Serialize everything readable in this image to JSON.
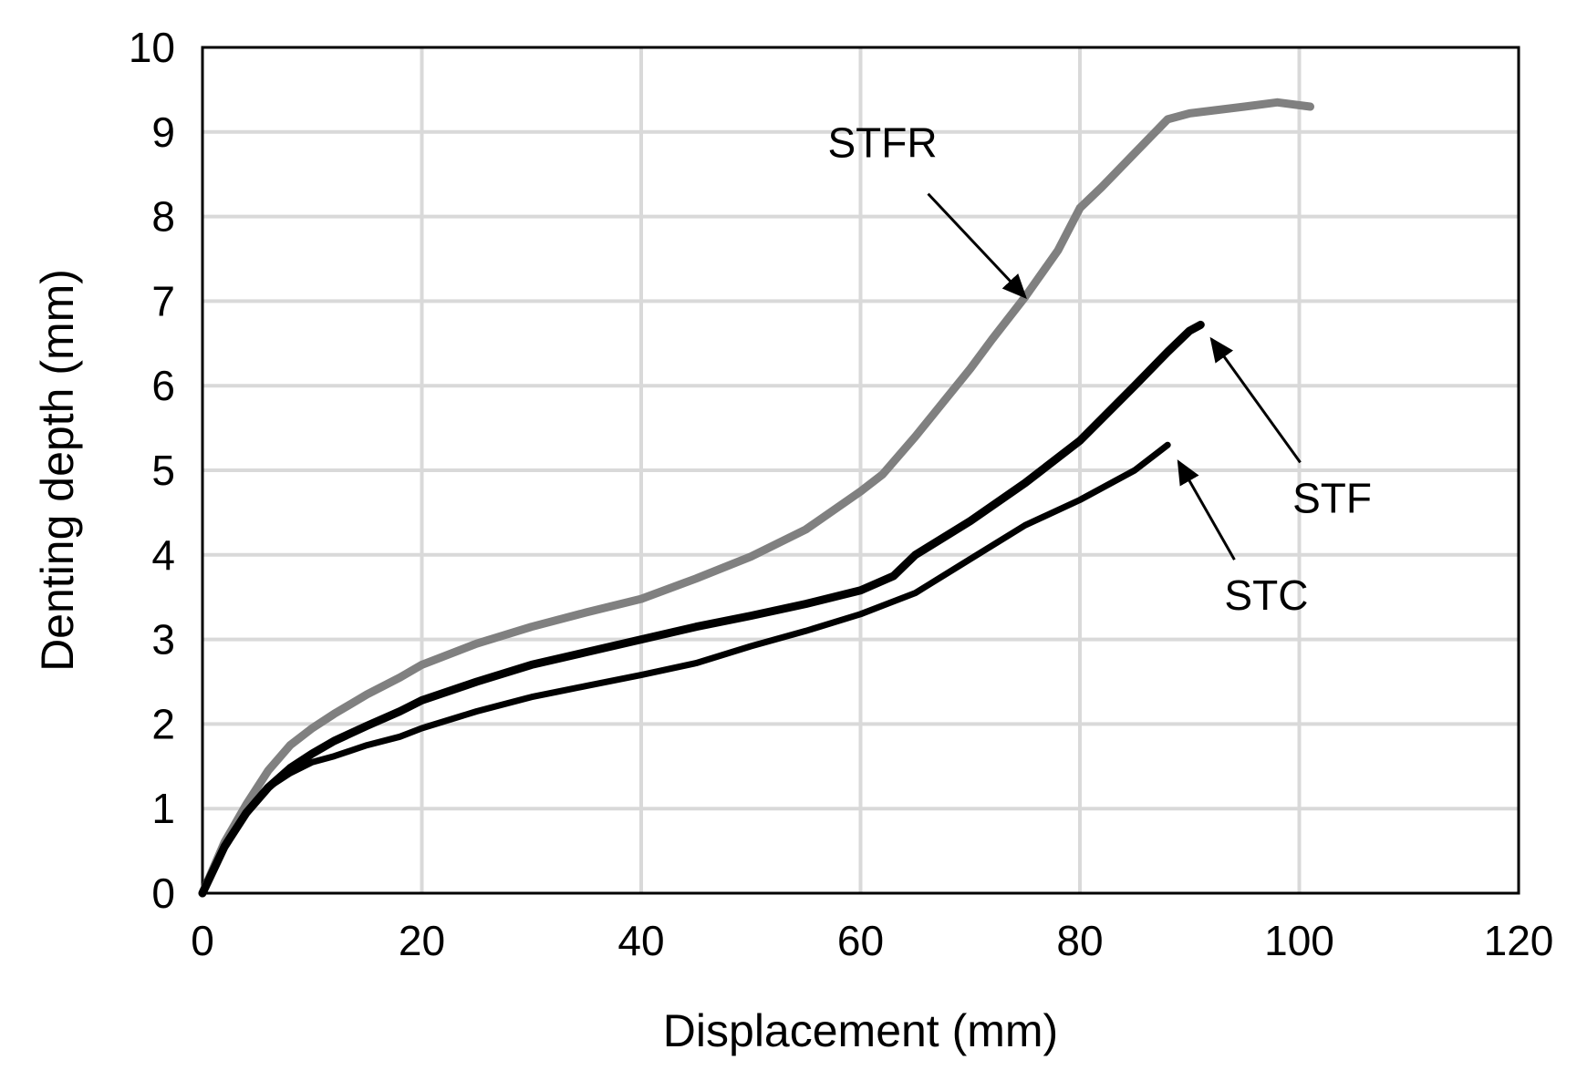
{
  "chart_data": {
    "type": "line",
    "title": "",
    "xlabel": "Displacement (mm)",
    "ylabel": "Denting depth (mm)",
    "xlim": [
      0,
      120
    ],
    "ylim": [
      0,
      10
    ],
    "x_ticks": [
      0,
      20,
      40,
      60,
      80,
      100,
      120
    ],
    "y_ticks": [
      0,
      1,
      2,
      3,
      4,
      5,
      6,
      7,
      8,
      9,
      10
    ],
    "grid": true,
    "legend": "none",
    "series": [
      {
        "name": "STFR",
        "color": "#808080",
        "x": [
          0,
          2,
          4,
          6,
          8,
          10,
          12,
          15,
          18,
          20,
          25,
          30,
          35,
          40,
          45,
          50,
          55,
          60,
          62,
          65,
          70,
          72,
          75,
          78,
          80,
          82,
          85,
          88,
          90,
          95,
          98,
          101
        ],
        "y": [
          0,
          0.6,
          1.05,
          1.45,
          1.75,
          1.95,
          2.12,
          2.35,
          2.55,
          2.7,
          2.95,
          3.15,
          3.32,
          3.48,
          3.72,
          3.98,
          4.3,
          4.75,
          4.95,
          5.4,
          6.2,
          6.55,
          7.05,
          7.6,
          8.1,
          8.35,
          8.75,
          9.15,
          9.22,
          9.3,
          9.35,
          9.3
        ]
      },
      {
        "name": "STF",
        "color": "#000000",
        "x": [
          0,
          2,
          4,
          6,
          8,
          10,
          12,
          15,
          18,
          20,
          25,
          30,
          35,
          40,
          45,
          50,
          55,
          60,
          63,
          65,
          70,
          75,
          80,
          85,
          88,
          90,
          91
        ],
        "y": [
          0,
          0.55,
          0.95,
          1.25,
          1.48,
          1.65,
          1.8,
          1.98,
          2.15,
          2.28,
          2.5,
          2.7,
          2.85,
          3.0,
          3.15,
          3.28,
          3.42,
          3.58,
          3.75,
          4.0,
          4.4,
          4.85,
          5.35,
          6.0,
          6.4,
          6.65,
          6.72
        ]
      },
      {
        "name": "STC",
        "color": "#000000",
        "x": [
          0,
          2,
          4,
          6,
          8,
          10,
          12,
          15,
          18,
          20,
          25,
          30,
          35,
          40,
          45,
          50,
          55,
          60,
          62,
          65,
          70,
          75,
          80,
          85,
          88
        ],
        "y": [
          0,
          0.55,
          0.95,
          1.25,
          1.42,
          1.55,
          1.62,
          1.75,
          1.85,
          1.95,
          2.15,
          2.32,
          2.45,
          2.58,
          2.72,
          2.92,
          3.1,
          3.3,
          3.4,
          3.55,
          3.95,
          4.35,
          4.65,
          5.0,
          5.3
        ]
      }
    ],
    "annotations": [
      {
        "text": "STFR",
        "arrow_to": [
          75,
          7.05
        ],
        "text_at": [
          62,
          8.7
        ]
      },
      {
        "text": "STF",
        "arrow_to": [
          92,
          6.55
        ],
        "text_at": [
          103,
          4.5
        ]
      },
      {
        "text": "STC",
        "arrow_to": [
          89,
          5.1
        ],
        "text_at": [
          97,
          3.35
        ]
      }
    ]
  }
}
